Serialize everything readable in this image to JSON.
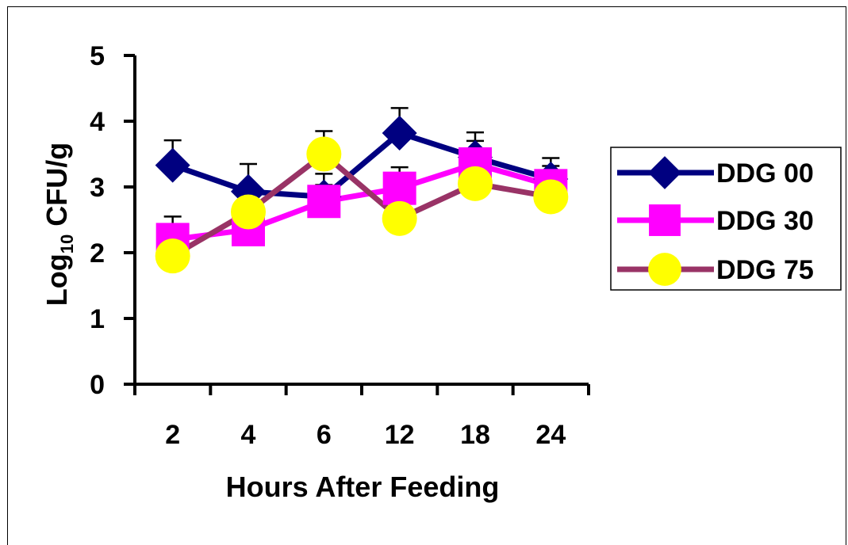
{
  "chart_data": {
    "type": "line",
    "categories": [
      "2",
      "4",
      "6",
      "12",
      "18",
      "24"
    ],
    "xlabel": "Hours After Feeding",
    "ylabel_main": "Log",
    "ylabel_sub": "10",
    "ylabel_rest": " CFU/g",
    "ylim": [
      0,
      5
    ],
    "yticks": [
      "0",
      "1",
      "2",
      "3",
      "4",
      "5"
    ],
    "grid": false,
    "legend_position": "right",
    "series": [
      {
        "name": "DDG 00",
        "color": "#000080",
        "marker": "diamond",
        "values": [
          3.33,
          2.93,
          2.85,
          3.82,
          3.45,
          3.12
        ],
        "errors": [
          0.38,
          0.42,
          0.35,
          0.38,
          0.38,
          0.32
        ]
      },
      {
        "name": "DDG 30",
        "color": "#ff00ff",
        "marker": "square",
        "values": [
          2.2,
          2.35,
          2.78,
          2.98,
          3.35,
          3.02
        ],
        "errors": [
          0.35,
          0.3,
          0.25,
          0.32,
          0.35,
          0.3
        ]
      },
      {
        "name": "DDG 75",
        "color": "#993366",
        "marker": "circle",
        "values": [
          1.95,
          2.62,
          3.5,
          2.52,
          3.05,
          2.85
        ],
        "errors": [
          0.0,
          0.0,
          0.35,
          0.0,
          0.0,
          0.0
        ]
      }
    ]
  }
}
